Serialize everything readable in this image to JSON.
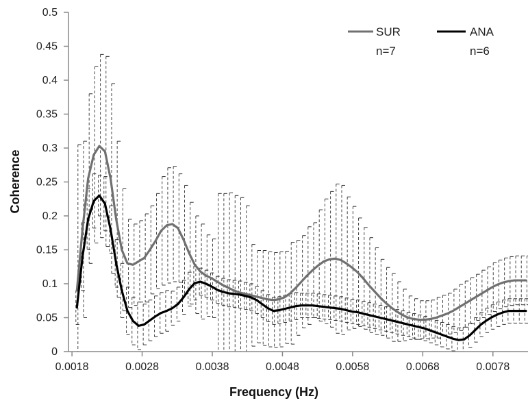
{
  "chart_data": {
    "type": "line",
    "title": "",
    "xlabel": "Frequency (Hz)",
    "ylabel": "Coherence",
    "xlim": [
      0.00175,
      0.0083
    ],
    "ylim": [
      0,
      0.5
    ],
    "x_ticks": [
      0.0018,
      0.0028,
      0.0038,
      0.0048,
      0.0058,
      0.0068,
      0.0078
    ],
    "x_tick_labels": [
      "0.0018",
      "0.0028",
      "0.0038",
      "0.0048",
      "0.0058",
      "0.0068",
      "0.0078"
    ],
    "y_ticks": [
      0,
      0.05,
      0.1,
      0.15,
      0.2,
      0.25,
      0.3,
      0.35,
      0.4,
      0.45,
      0.5
    ],
    "y_tick_labels": [
      "0",
      "0.05",
      "0.1",
      "0.15",
      "0.2",
      "0.25",
      "0.3",
      "0.35",
      "0.4",
      "0.45",
      "0.5"
    ],
    "grid": false,
    "legend_position": "top-right",
    "error_bars": true,
    "series": [
      {
        "name": "SUR",
        "n_label": "n=7",
        "color": "#707070",
        "x": [
          0.00187,
          0.00195,
          0.00203,
          0.00211,
          0.00219,
          0.00227,
          0.00235,
          0.00243,
          0.00251,
          0.00259,
          0.00267,
          0.00275,
          0.00283,
          0.00291,
          0.00299,
          0.00307,
          0.00315,
          0.00323,
          0.00331,
          0.00339,
          0.00347,
          0.00355,
          0.00363,
          0.00371,
          0.00379,
          0.00387,
          0.00395,
          0.00403,
          0.00411,
          0.00419,
          0.00427,
          0.00435,
          0.00443,
          0.00451,
          0.00459,
          0.00467,
          0.00475,
          0.00483,
          0.00491,
          0.00499,
          0.00507,
          0.00515,
          0.00523,
          0.00531,
          0.00539,
          0.00547,
          0.00555,
          0.00563,
          0.00571,
          0.00579,
          0.00587,
          0.00595,
          0.00603,
          0.00611,
          0.00619,
          0.00627,
          0.00635,
          0.00643,
          0.00651,
          0.00659,
          0.00667,
          0.00675,
          0.00683,
          0.00691,
          0.00699,
          0.00707,
          0.00715,
          0.00723,
          0.00731,
          0.00739,
          0.00747,
          0.00755,
          0.00763,
          0.00771,
          0.00779,
          0.00787,
          0.00795,
          0.00803,
          0.00811,
          0.00819,
          0.00827
        ],
        "y": [
          0.09,
          0.18,
          0.255,
          0.29,
          0.303,
          0.295,
          0.255,
          0.195,
          0.15,
          0.13,
          0.128,
          0.133,
          0.138,
          0.15,
          0.163,
          0.178,
          0.186,
          0.188,
          0.182,
          0.165,
          0.145,
          0.128,
          0.118,
          0.112,
          0.108,
          0.103,
          0.098,
          0.094,
          0.09,
          0.087,
          0.085,
          0.083,
          0.081,
          0.079,
          0.077,
          0.076,
          0.077,
          0.08,
          0.086,
          0.094,
          0.103,
          0.112,
          0.12,
          0.127,
          0.133,
          0.136,
          0.137,
          0.135,
          0.13,
          0.124,
          0.117,
          0.108,
          0.098,
          0.089,
          0.08,
          0.072,
          0.065,
          0.059,
          0.054,
          0.05,
          0.048,
          0.047,
          0.047,
          0.048,
          0.05,
          0.053,
          0.056,
          0.06,
          0.065,
          0.07,
          0.075,
          0.08,
          0.085,
          0.09,
          0.095,
          0.099,
          0.102,
          0.104,
          0.105,
          0.105,
          0.105
        ],
        "err": [
          0.215,
          0.13,
          0.125,
          0.13,
          0.135,
          0.14,
          0.14,
          0.115,
          0.09,
          0.065,
          0.06,
          0.06,
          0.065,
          0.065,
          0.07,
          0.08,
          0.085,
          0.085,
          0.08,
          0.08,
          0.075,
          0.072,
          0.07,
          0.06,
          0.058,
          0.13,
          0.135,
          0.14,
          0.14,
          0.14,
          0.13,
          0.075,
          0.068,
          0.07,
          0.07,
          0.07,
          0.07,
          0.068,
          0.075,
          0.07,
          0.068,
          0.072,
          0.07,
          0.082,
          0.092,
          0.1,
          0.11,
          0.11,
          0.098,
          0.09,
          0.08,
          0.075,
          0.07,
          0.064,
          0.056,
          0.052,
          0.05,
          0.044,
          0.038,
          0.032,
          0.03,
          0.028,
          0.028,
          0.028,
          0.03,
          0.03,
          0.03,
          0.032,
          0.034,
          0.034,
          0.034,
          0.034,
          0.035,
          0.035,
          0.036,
          0.036,
          0.036,
          0.036,
          0.036,
          0.036,
          0.036
        ]
      },
      {
        "name": "ANA",
        "n_label": "n=6",
        "color": "#000000",
        "x": [
          0.00187,
          0.00195,
          0.00203,
          0.00211,
          0.00219,
          0.00227,
          0.00235,
          0.00243,
          0.00251,
          0.00259,
          0.00267,
          0.00275,
          0.00283,
          0.00291,
          0.00299,
          0.00307,
          0.00315,
          0.00323,
          0.00331,
          0.00339,
          0.00347,
          0.00355,
          0.00363,
          0.00371,
          0.00379,
          0.00387,
          0.00395,
          0.00403,
          0.00411,
          0.00419,
          0.00427,
          0.00435,
          0.00443,
          0.00451,
          0.00459,
          0.00467,
          0.00475,
          0.00483,
          0.00491,
          0.00499,
          0.00507,
          0.00515,
          0.00523,
          0.00531,
          0.00539,
          0.00547,
          0.00555,
          0.00563,
          0.00571,
          0.00579,
          0.00587,
          0.00595,
          0.00603,
          0.00611,
          0.00619,
          0.00627,
          0.00635,
          0.00643,
          0.00651,
          0.00659,
          0.00667,
          0.00675,
          0.00683,
          0.00691,
          0.00699,
          0.00707,
          0.00715,
          0.00723,
          0.00731,
          0.00739,
          0.00747,
          0.00755,
          0.00763,
          0.00771,
          0.00779,
          0.00787,
          0.00795,
          0.00803,
          0.00811,
          0.00819,
          0.00827
        ],
        "y": [
          0.065,
          0.14,
          0.195,
          0.222,
          0.23,
          0.218,
          0.18,
          0.13,
          0.09,
          0.06,
          0.045,
          0.038,
          0.04,
          0.046,
          0.052,
          0.057,
          0.06,
          0.064,
          0.07,
          0.08,
          0.092,
          0.101,
          0.103,
          0.1,
          0.096,
          0.091,
          0.088,
          0.086,
          0.085,
          0.084,
          0.082,
          0.08,
          0.076,
          0.07,
          0.064,
          0.06,
          0.061,
          0.063,
          0.065,
          0.067,
          0.068,
          0.068,
          0.068,
          0.067,
          0.066,
          0.065,
          0.064,
          0.063,
          0.061,
          0.059,
          0.058,
          0.056,
          0.054,
          0.052,
          0.05,
          0.048,
          0.046,
          0.044,
          0.042,
          0.04,
          0.038,
          0.036,
          0.034,
          0.031,
          0.028,
          0.025,
          0.022,
          0.019,
          0.017,
          0.018,
          0.024,
          0.032,
          0.04,
          0.046,
          0.051,
          0.055,
          0.058,
          0.06,
          0.06,
          0.06,
          0.06
        ],
        "err": [
          0.025,
          0.05,
          0.045,
          0.04,
          0.03,
          0.04,
          0.035,
          0.035,
          0.04,
          0.035,
          0.035,
          0.035,
          0.03,
          0.03,
          0.03,
          0.03,
          0.03,
          0.025,
          0.025,
          0.025,
          0.025,
          0.025,
          0.02,
          0.02,
          0.02,
          0.02,
          0.02,
          0.02,
          0.02,
          0.02,
          0.02,
          0.02,
          0.02,
          0.02,
          0.02,
          0.02,
          0.02,
          0.02,
          0.02,
          0.02,
          0.018,
          0.018,
          0.018,
          0.018,
          0.018,
          0.018,
          0.018,
          0.018,
          0.018,
          0.018,
          0.018,
          0.018,
          0.018,
          0.018,
          0.018,
          0.018,
          0.018,
          0.018,
          0.018,
          0.018,
          0.018,
          0.018,
          0.018,
          0.018,
          0.018,
          0.018,
          0.018,
          0.018,
          0.018,
          0.018,
          0.018,
          0.018,
          0.018,
          0.018,
          0.018,
          0.018,
          0.018,
          0.018,
          0.018,
          0.018,
          0.018
        ]
      }
    ]
  }
}
